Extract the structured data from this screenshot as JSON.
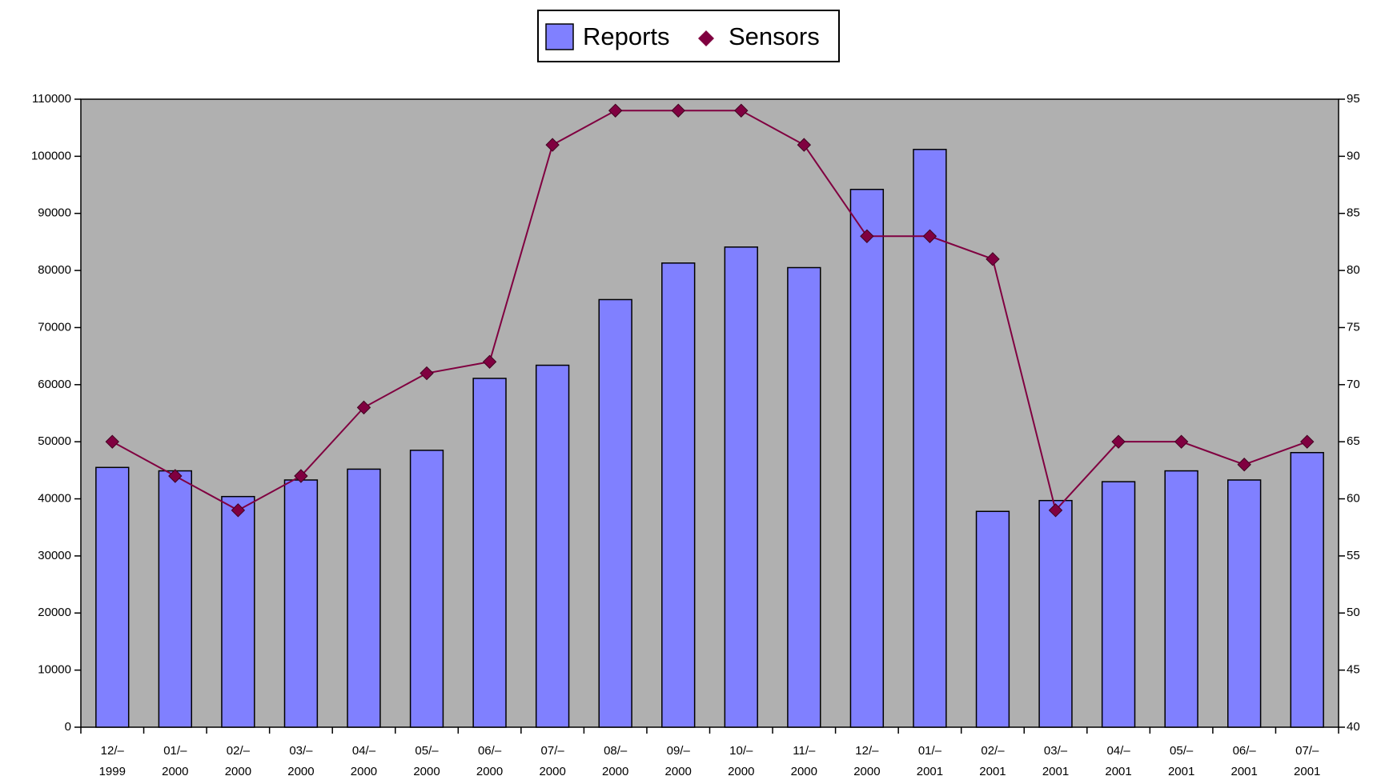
{
  "chart_data": {
    "type": "bar_line",
    "categories": [
      "12/– 1999",
      "01/– 2000",
      "02/– 2000",
      "03/– 2000",
      "04/– 2000",
      "05/– 2000",
      "06/– 2000",
      "07/– 2000",
      "08/– 2000",
      "09/– 2000",
      "10/– 2000",
      "11/– 2000",
      "12/– 2000",
      "01/– 2001",
      "02/– 2001",
      "03/– 2001",
      "04/– 2001",
      "05/– 2001",
      "06/– 2001",
      "07/– 2001"
    ],
    "series": [
      {
        "name": "Reports",
        "type": "bar",
        "color": "#8080ff",
        "values": [
          45500,
          44900,
          40400,
          43300,
          45200,
          48500,
          61100,
          63400,
          74900,
          81300,
          84100,
          80500,
          94200,
          101200,
          37800,
          39700,
          43000,
          44900,
          43300,
          48100
        ]
      },
      {
        "name": "Sensors",
        "type": "line",
        "axis": "y2",
        "color": "#800040",
        "values": [
          65,
          62,
          59,
          62,
          68,
          71,
          72,
          91,
          94,
          94,
          94,
          91,
          83,
          83,
          81,
          59,
          65,
          65,
          63,
          65
        ]
      }
    ],
    "ylim": [
      0,
      110000
    ],
    "yticks": [
      0,
      10000,
      20000,
      30000,
      40000,
      50000,
      60000,
      70000,
      80000,
      90000,
      100000,
      110000
    ],
    "y2lim": [
      40,
      95
    ],
    "y2ticks": [
      40,
      45,
      50,
      55,
      60,
      65,
      70,
      75,
      80,
      85,
      90,
      95
    ],
    "plot_background": "#b0b0b0"
  }
}
